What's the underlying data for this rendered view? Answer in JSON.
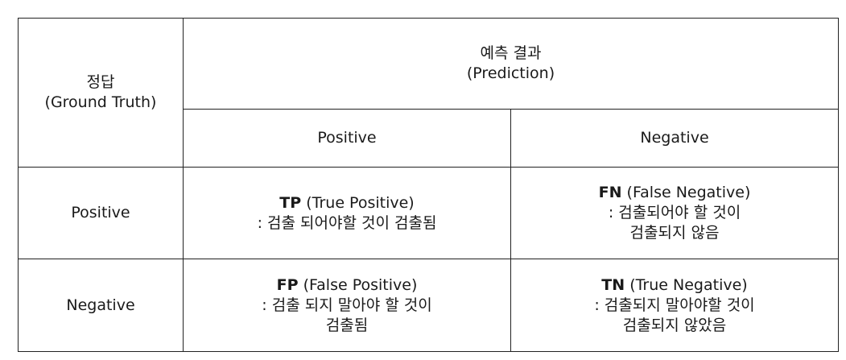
{
  "header": {
    "ground_truth_label": "정답",
    "ground_truth_sub": "(Ground Truth)",
    "prediction_label": "예측 결과",
    "prediction_sub": "(Prediction)"
  },
  "columns": [
    "Positive",
    "Negative"
  ],
  "rows": [
    {
      "label": "Positive",
      "cells": [
        {
          "abbr": "TP",
          "full": "(True Positive)",
          "lines": [
            ": 검출 되어야할 것이 검출됨"
          ]
        },
        {
          "abbr": "FN",
          "full": "(False Negative)",
          "lines": [
            ": 검출되어야 할 것이",
            "검출되지 않음"
          ]
        }
      ]
    },
    {
      "label": "Negative",
      "cells": [
        {
          "abbr": "FP",
          "full": "(False Positive)",
          "lines": [
            ": 검출 되지 말아야 할 것이",
            "검출됨"
          ]
        },
        {
          "abbr": "TN",
          "full": "(True Negative)",
          "lines": [
            ": 검출되지 말아야할 것이",
            "검출되지 않았음"
          ]
        }
      ]
    }
  ]
}
